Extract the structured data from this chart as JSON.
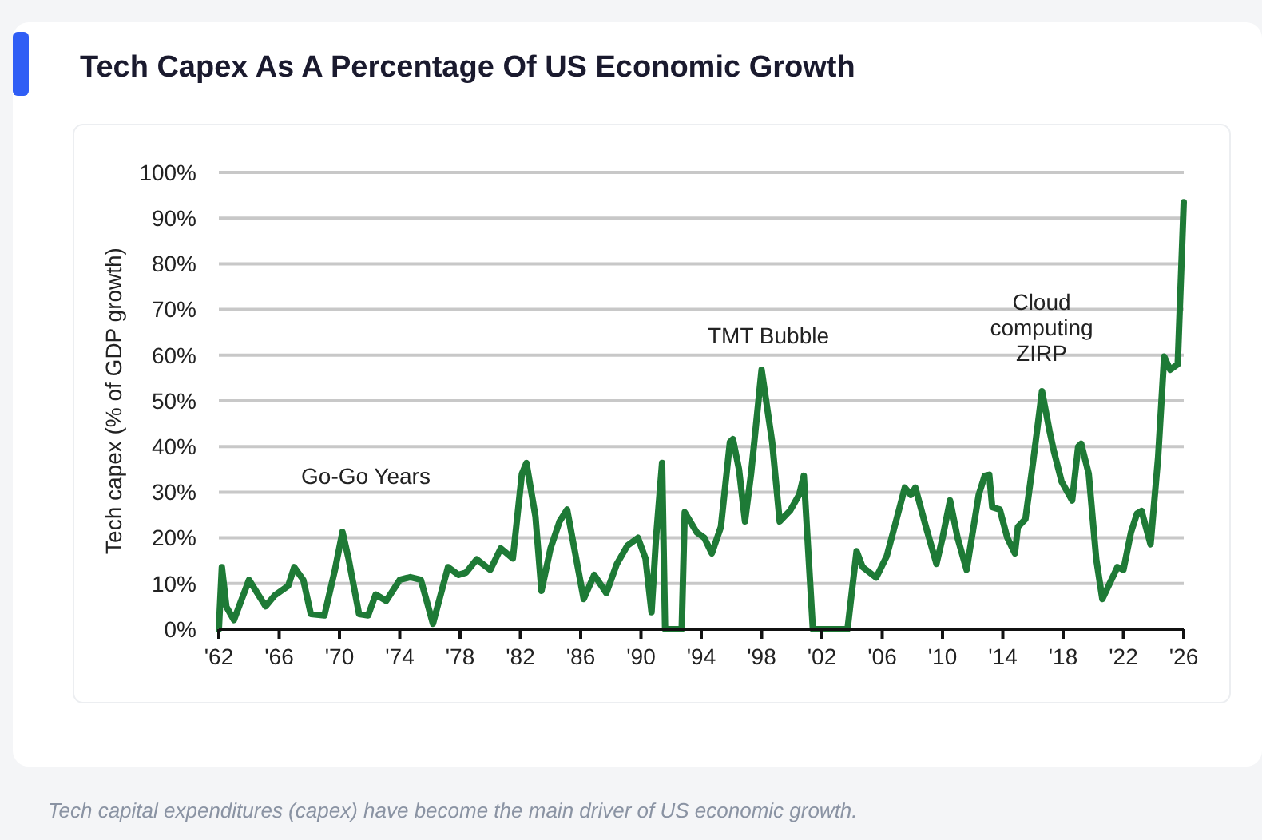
{
  "chart_data": {
    "type": "line",
    "title": "Tech Capex As A Percentage Of US Economic Growth",
    "ylabel": "Tech capex (% of GDP growth)",
    "x": [
      1962.0,
      1962.2,
      1962.5,
      1963.0,
      1964.0,
      1965.1,
      1965.7,
      1966.6,
      1967.0,
      1967.6,
      1968.1,
      1969.0,
      1969.7,
      1970.2,
      1970.6,
      1971.3,
      1971.9,
      1972.4,
      1973.1,
      1974.0,
      1974.7,
      1975.4,
      1976.2,
      1977.2,
      1977.9,
      1978.4,
      1979.1,
      1980.0,
      1980.7,
      1981.5,
      1982.1,
      1982.4,
      1983.0,
      1983.4,
      1984.0,
      1984.6,
      1985.1,
      1986.2,
      1986.9,
      1987.7,
      1988.4,
      1989.1,
      1989.8,
      1990.3,
      1990.7,
      1991.0,
      1991.4,
      1991.6,
      1992.7,
      1992.9,
      1993.7,
      1994.2,
      1994.7,
      1995.3,
      1995.9,
      1996.1,
      1996.5,
      1996.9,
      1997.3,
      1998.0,
      1998.7,
      1999.2,
      1999.9,
      2000.5,
      2000.8,
      2001.4,
      2003.7,
      2004.3,
      2004.7,
      2005.6,
      2006.3,
      2007.0,
      2007.5,
      2007.9,
      2008.2,
      2008.9,
      2009.6,
      2010.0,
      2010.5,
      2011.0,
      2011.6,
      2012.4,
      2012.8,
      2013.1,
      2013.3,
      2013.8,
      2014.3,
      2014.8,
      2015.0,
      2015.5,
      2016.0,
      2016.6,
      2017.1,
      2017.4,
      2017.9,
      2018.6,
      2019.0,
      2019.2,
      2019.7,
      2020.2,
      2020.6,
      2021.6,
      2022.0,
      2022.5,
      2022.9,
      2023.2,
      2023.8,
      2024.3,
      2024.7,
      2025.1,
      2025.6,
      2026.0
    ],
    "series": [
      {
        "color": "#1e7a36",
        "values": [
          0,
          13.6,
          4.9,
          2,
          10.8,
          5,
          7.4,
          9.5,
          13.6,
          10.8,
          3.3,
          3,
          13,
          21.3,
          15.5,
          3.3,
          3,
          7.6,
          6.2,
          10.8,
          11.4,
          10.8,
          1.2,
          13.6,
          11.9,
          12.4,
          15.3,
          13,
          17.7,
          15.5,
          34,
          36.4,
          24.7,
          8.4,
          17.7,
          23.6,
          26.2,
          6.6,
          11.9,
          7.9,
          14.3,
          18.3,
          20,
          15.5,
          3.7,
          20,
          36.4,
          0,
          0,
          25.6,
          21.2,
          20,
          16.6,
          22.4,
          41,
          41.6,
          35,
          23.6,
          34,
          56.8,
          41,
          23.6,
          26,
          29.5,
          33.6,
          0,
          0,
          17.1,
          13.6,
          11.3,
          16,
          24.7,
          31,
          29.4,
          31,
          22.4,
          14.3,
          20,
          28.2,
          20,
          13,
          29.4,
          33.6,
          33.8,
          26.7,
          26.2,
          20,
          16.6,
          22.4,
          24.1,
          36.4,
          52.1,
          43.4,
          38.8,
          32.3,
          28.2,
          40,
          40.6,
          34,
          15.3,
          6.6,
          13.6,
          13,
          21.2,
          25.3,
          25.9,
          18.6,
          37.6,
          59.7,
          56.8,
          58,
          93.5
        ]
      }
    ],
    "xlim": [
      1962,
      2026
    ],
    "xticks": [
      {
        "value": 1962,
        "label": "'62"
      },
      {
        "value": 1966,
        "label": "'66"
      },
      {
        "value": 1970,
        "label": "'70"
      },
      {
        "value": 1974,
        "label": "'74"
      },
      {
        "value": 1978,
        "label": "'78"
      },
      {
        "value": 1982,
        "label": "'82"
      },
      {
        "value": 1986,
        "label": "'86"
      },
      {
        "value": 1990,
        "label": "'90"
      },
      {
        "value": 1994,
        "label": "'94"
      },
      {
        "value": 1998,
        "label": "'98"
      },
      {
        "value": 2002,
        "label": "'02"
      },
      {
        "value": 2006,
        "label": "'06"
      },
      {
        "value": 2010,
        "label": "'10"
      },
      {
        "value": 2014,
        "label": "'14"
      },
      {
        "value": 2018,
        "label": "'18"
      },
      {
        "value": 2022,
        "label": "'22"
      },
      {
        "value": 2026,
        "label": "'26"
      }
    ],
    "ylim": [
      0,
      100
    ],
    "yticks": [
      {
        "value": 0,
        "label": "0%"
      },
      {
        "value": 10,
        "label": "10%"
      },
      {
        "value": 20,
        "label": "20%"
      },
      {
        "value": 30,
        "label": "30%"
      },
      {
        "value": 40,
        "label": "40%"
      },
      {
        "value": 50,
        "label": "50%"
      },
      {
        "value": 60,
        "label": "60%"
      },
      {
        "value": 70,
        "label": "70%"
      },
      {
        "value": 80,
        "label": "80%"
      },
      {
        "value": 90,
        "label": "90%"
      },
      {
        "value": 100,
        "label": "100%"
      }
    ],
    "grid": "y",
    "line_style": "solid",
    "annotations": [
      "Go-Go Years",
      "TMT Bubble",
      "Cloud\ncomputing\nZIRP",
      "Tech capital expenditures (capex) have become the main driver of US economic growth."
    ]
  }
}
